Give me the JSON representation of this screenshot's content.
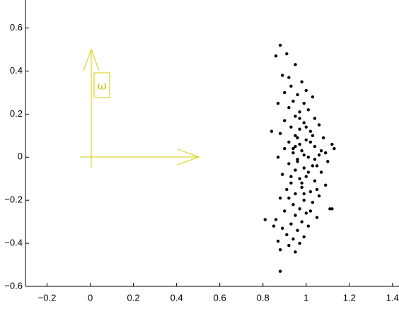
{
  "chart_data": {
    "type": "scatter",
    "xlim": [
      -0.3,
      1.43
    ],
    "ylim": [
      -0.6,
      0.73
    ],
    "xticks": [
      {
        "value": -0.2,
        "label": "−0.2"
      },
      0,
      0.2,
      0.4,
      0.6,
      0.8,
      1,
      1.2,
      1.4
    ],
    "yticks": [
      {
        "value": -0.6,
        "label": "−0.6"
      },
      {
        "value": -0.4,
        "label": "−0.4"
      },
      {
        "value": -0.2,
        "label": "−0.2"
      },
      0,
      0.2,
      0.4,
      0.6
    ],
    "color": "#000000",
    "annotation": "ω",
    "x": [
      0.88,
      0.91,
      0.86,
      0.95,
      0.89,
      0.92,
      0.98,
      0.93,
      1.0,
      0.9,
      0.96,
      1.03,
      0.94,
      0.99,
      0.92,
      1.01,
      0.97,
      0.95,
      1.04,
      0.9,
      0.99,
      1.06,
      0.93,
      0.97,
      1.02,
      0.88,
      0.95,
      1.08,
      1.0,
      0.92,
      0.97,
      1.12,
      1.04,
      0.9,
      0.98,
      0.94,
      1.06,
      1.01,
      0.87,
      0.96,
      1.1,
      0.92,
      1.03,
      0.99,
      0.95,
      1.07,
      0.89,
      1.0,
      0.97,
      1.04,
      0.93,
      1.09,
      0.98,
      0.91,
      1.02,
      0.95,
      1.06,
      0.88,
      0.99,
      1.03,
      0.94,
      0.97,
      1.11,
      0.9,
      1.0,
      0.95,
      1.05,
      0.86,
      0.98,
      0.81,
      0.93,
      1.01,
      0.89,
      0.96,
      0.91,
      0.99,
      0.94,
      0.87,
      0.97,
      0.92,
      0.88,
      0.95,
      0.88,
      1.12,
      1.09,
      1.05,
      1.02,
      0.96,
      0.99,
      1.01,
      0.94,
      0.98,
      1.03,
      0.97,
      0.93,
      1.0,
      0.96,
      1.05,
      0.92,
      1.02,
      0.85,
      0.84,
      0.87,
      1.07,
      1.13,
      0.99,
      0.95,
      1.04
    ],
    "y": [
      0.52,
      0.48,
      0.47,
      0.43,
      0.38,
      0.37,
      0.35,
      0.33,
      0.31,
      0.3,
      0.29,
      0.28,
      0.26,
      0.25,
      0.23,
      0.22,
      0.21,
      0.19,
      0.18,
      0.17,
      0.16,
      0.15,
      0.14,
      0.13,
      0.12,
      0.11,
      0.1,
      0.09,
      0.08,
      0.07,
      0.06,
      0.06,
      0.05,
      0.04,
      0.03,
      0.02,
      0.01,
      0.0,
      0.0,
      -0.01,
      -0.02,
      -0.03,
      -0.04,
      -0.05,
      -0.06,
      -0.07,
      -0.08,
      -0.09,
      -0.1,
      -0.11,
      -0.12,
      -0.13,
      -0.14,
      -0.15,
      -0.16,
      -0.17,
      -0.18,
      -0.19,
      -0.2,
      -0.21,
      -0.22,
      -0.24,
      -0.24,
      -0.25,
      -0.26,
      -0.27,
      -0.28,
      -0.29,
      -0.3,
      -0.29,
      -0.31,
      -0.32,
      -0.33,
      -0.34,
      -0.36,
      -0.37,
      -0.38,
      -0.39,
      -0.4,
      -0.41,
      -0.43,
      -0.44,
      -0.53,
      -0.24,
      0.02,
      -0.04,
      0.07,
      -0.02,
      0.01,
      -0.07,
      0.04,
      -0.12,
      0.1,
      0.18,
      -0.09,
      0.14,
      0.09,
      -0.15,
      -0.19,
      -0.25,
      -0.32,
      0.12,
      0.25,
      0.03,
      0.04,
      -0.17,
      0.05,
      -0.01
    ]
  }
}
